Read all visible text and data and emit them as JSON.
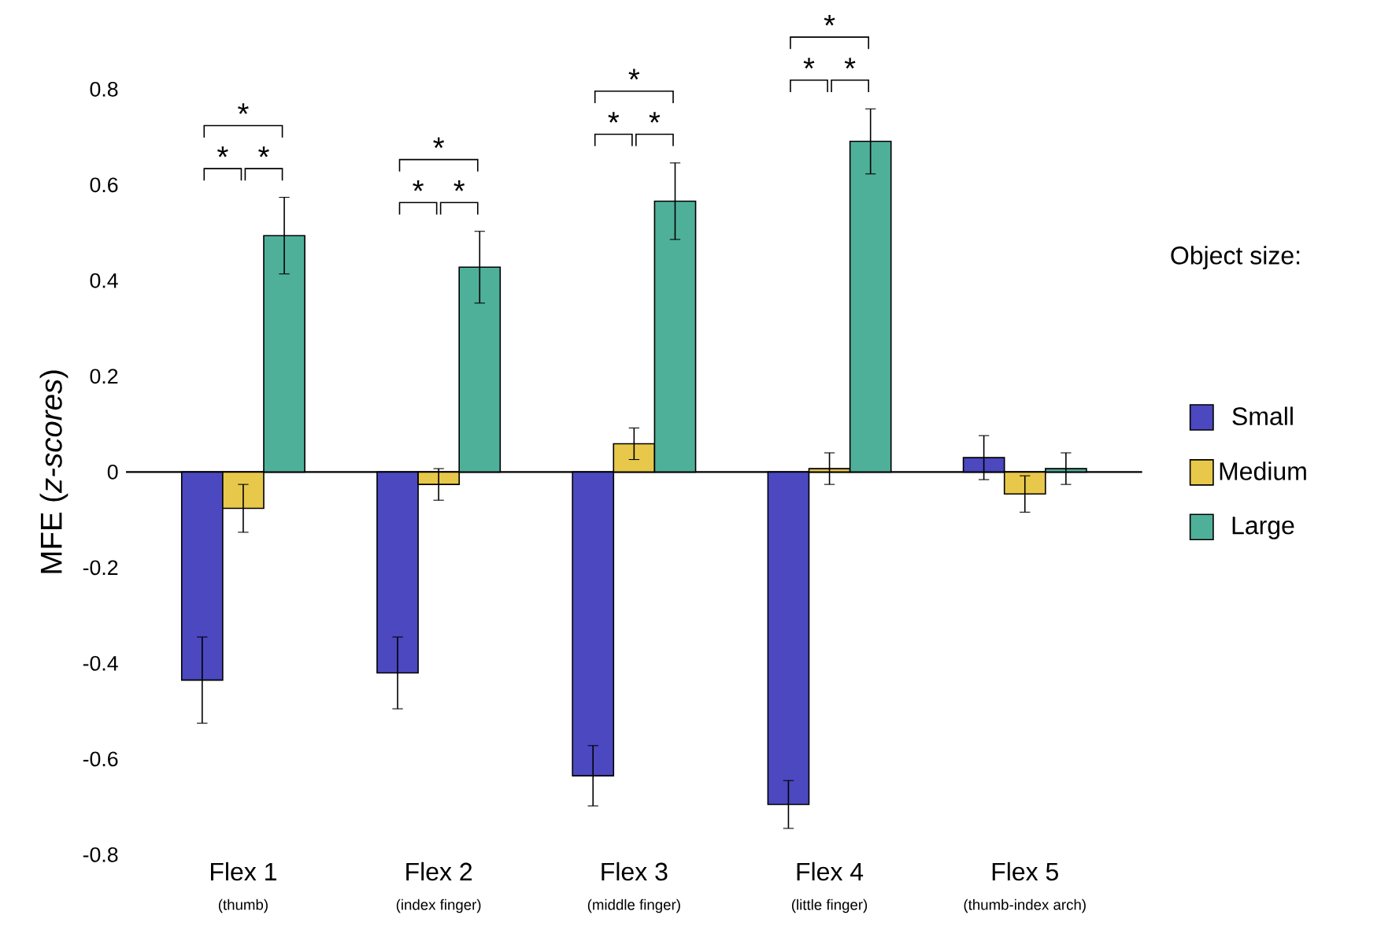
{
  "chart_data": {
    "type": "bar",
    "ylabel": "MFE (*z-scores*)",
    "legend_title": "Object size:",
    "legend": "right",
    "categories": [
      "Flex 1",
      "Flex 2",
      "Flex 3",
      "Flex 4",
      "Flex 5"
    ],
    "series": [
      {
        "name": "Small",
        "color": "#4b48c0",
        "values": [
          -0.435,
          -0.42,
          -0.635,
          -0.695,
          0.03
        ],
        "errors": [
          0.09,
          0.075,
          0.063,
          0.05,
          0.046
        ]
      },
      {
        "name": "Medium",
        "color": "#e8c84a",
        "values": [
          -0.076,
          -0.026,
          0.059,
          0.007,
          -0.046
        ],
        "errors": [
          0.05,
          0.033,
          0.033,
          0.033,
          0.038
        ]
      },
      {
        "name": "Large",
        "color": "#4fb09a",
        "values": [
          0.494,
          0.428,
          0.566,
          0.691,
          0.007
        ],
        "errors": [
          0.08,
          0.075,
          0.08,
          0.068,
          0.033
        ]
      }
    ],
    "ylim": [
      -0.8,
      0.8
    ],
    "yticks": [
      -0.8,
      -0.6,
      -0.4,
      -0.2,
      0,
      0.2,
      0.4,
      0.6,
      0.8
    ],
    "ref_lines": [
      {
        "axis": "y",
        "value": 0,
        "color": "#000000"
      }
    ],
    "annotations": [
      "(thumb)",
      "(index finger)",
      "(middle finger)",
      "(little finger)",
      "(thumb-index arch)",
      "*",
      "*",
      "*",
      "*",
      "*",
      "*",
      "*",
      "*",
      "*",
      "*",
      "*",
      "*"
    ]
  }
}
